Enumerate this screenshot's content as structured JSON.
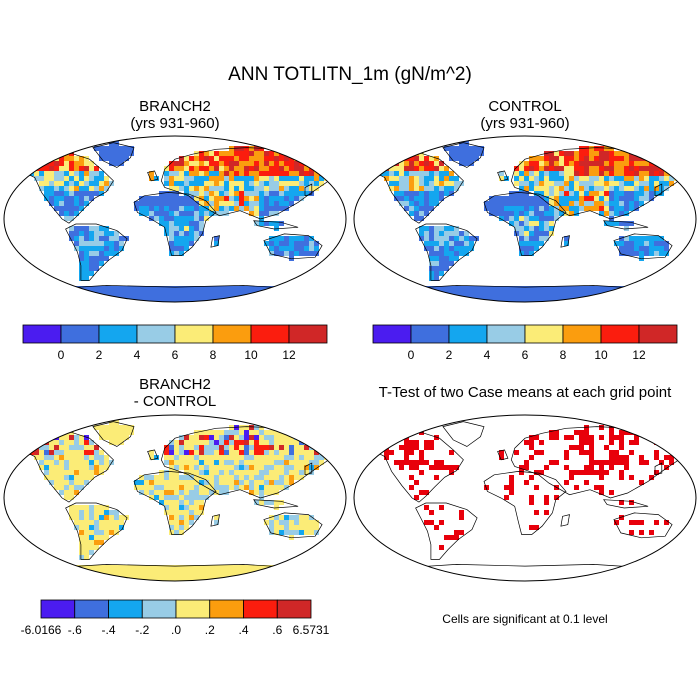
{
  "figure": {
    "title": "ANN TOTLITN_1m (gN/m^2)"
  },
  "panels": [
    {
      "id": "branch2",
      "title_line1": "BRANCH2",
      "title_line2": "(yrs 931-960)",
      "mode": "abs",
      "palette_seed": 11
    },
    {
      "id": "control",
      "title_line1": "CONTROL",
      "title_line2": "(yrs 931-960)",
      "mode": "abs",
      "palette_seed": 23
    },
    {
      "id": "diff",
      "title_line1": "BRANCH2",
      "title_line2": "- CONTROL",
      "mode": "diff",
      "palette_seed": 37
    },
    {
      "id": "ttest",
      "title_line1": "T-Test of two Case means at each grid point",
      "title_line2": "",
      "mode": "ttest",
      "palette_seed": 51
    }
  ],
  "colorbars": {
    "absolute": {
      "colors": [
        "#4b1cf0",
        "#3f6fde",
        "#14a6ef",
        "#98cce6",
        "#fbec77",
        "#fb9d0e",
        "#fb1d0e",
        "#d02727"
      ],
      "labels": [
        "0",
        "2",
        "4",
        "6",
        "8",
        "10",
        "12"
      ]
    },
    "difference": {
      "colors": [
        "#4b1cf0",
        "#3f6fde",
        "#14a6ef",
        "#98cce6",
        "#fbec77",
        "#fb9d0e",
        "#fb1d0e",
        "#d02727"
      ],
      "labels": [
        "-6.0166",
        "-.6",
        "-.4",
        "-.2",
        ".0",
        ".2",
        ".4",
        ".6",
        "6.5731"
      ]
    }
  },
  "ttest_note": "Cells are significant at 0.1 level",
  "ttest_color": "#e8000b"
}
